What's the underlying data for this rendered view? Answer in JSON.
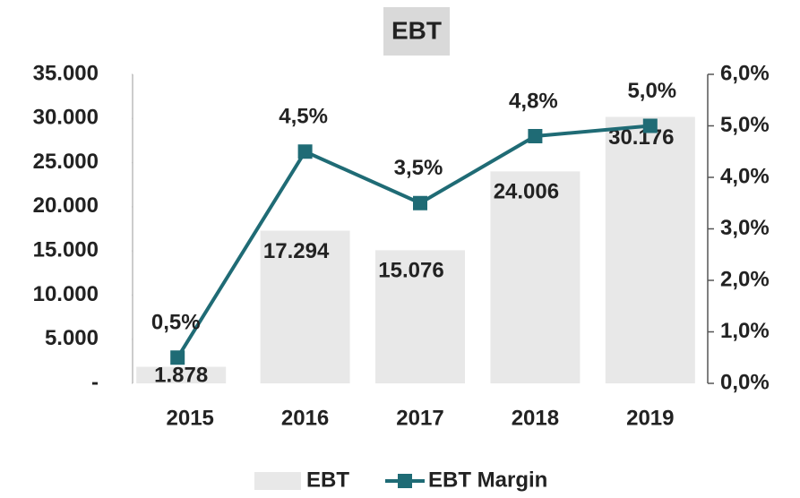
{
  "chart_data": {
    "type": "bar-line",
    "title": "EBT",
    "categories": [
      "2015",
      "2016",
      "2017",
      "2018",
      "2019"
    ],
    "series": [
      {
        "name": "EBT",
        "type": "bar",
        "color": "#e8e8e8",
        "values": [
          1878,
          17294,
          15076,
          24006,
          30176
        ],
        "value_labels": [
          "1.878",
          "17.294",
          "15.076",
          "24.006",
          "30.176"
        ]
      },
      {
        "name": "EBT Margin",
        "type": "line",
        "axis": "y2",
        "color": "#1f6b75",
        "values": [
          0.5,
          4.5,
          3.5,
          4.8,
          5.0
        ],
        "value_labels": [
          "0,5%",
          "4,5%",
          "3,5%",
          "4,8%",
          "5,0%"
        ]
      }
    ],
    "ylim": [
      0,
      35000
    ],
    "yticks": [
      {
        "value": 0,
        "label": "-"
      },
      {
        "value": 5000,
        "label": "5.000"
      },
      {
        "value": 10000,
        "label": "10.000"
      },
      {
        "value": 15000,
        "label": "15.000"
      },
      {
        "value": 20000,
        "label": "20.000"
      },
      {
        "value": 25000,
        "label": "25.000"
      },
      {
        "value": 30000,
        "label": "30.000"
      },
      {
        "value": 35000,
        "label": "35.000"
      }
    ],
    "y2lim": [
      0,
      6
    ],
    "y2ticks": [
      {
        "value": 0,
        "label": "0,0%"
      },
      {
        "value": 1,
        "label": "1,0%"
      },
      {
        "value": 2,
        "label": "2,0%"
      },
      {
        "value": 3,
        "label": "3,0%"
      },
      {
        "value": 4,
        "label": "4,0%"
      },
      {
        "value": 5,
        "label": "5,0%"
      },
      {
        "value": 6,
        "label": "6,0%"
      }
    ],
    "legend": "bottom"
  }
}
